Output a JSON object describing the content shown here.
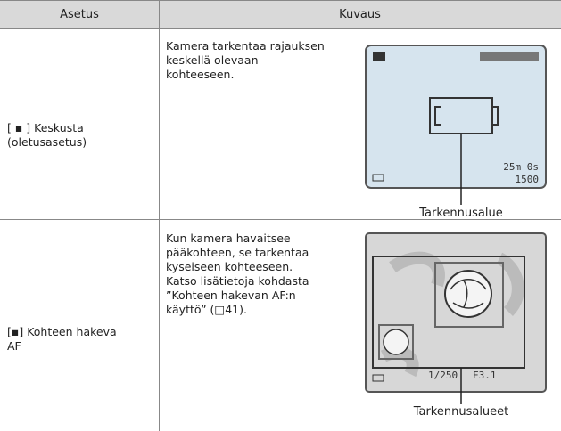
{
  "header": {
    "columns": [
      "Asetus",
      "Kuvaus"
    ]
  },
  "rows": [
    {
      "setting": [
        "[ ▪ ] Keskusta",
        "(oletusasetus)"
      ],
      "description": [
        "Kamera tarkentaa rajauksen",
        "keskellä olevaan",
        "kohteeseen."
      ],
      "screen_texts": [
        "25m 0s",
        "1500"
      ],
      "image_label": "Tarkennusalue"
    },
    {
      "setting": [
        "[▪] Kohteen hakeva",
        "AF"
      ],
      "description": [
        "Kun kamera havaitsee",
        "pääkohteen, se tarkentaa",
        "kyseiseen kohteeseen.",
        "Katso lisätietoja kohdasta",
        "”Kohteen hakevan AF:n",
        "käyttö” (□41)."
      ],
      "screen_texts": [
        "1/250",
        "F3.1"
      ],
      "image_label": "Tarkennusalueet"
    }
  ]
}
